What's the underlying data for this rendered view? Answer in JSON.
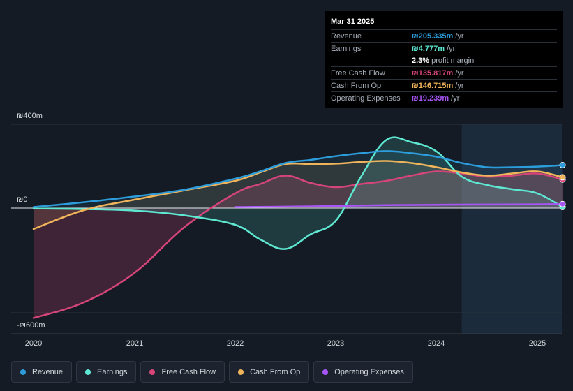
{
  "tooltip": {
    "date": "Mar 31 2025",
    "rows": [
      {
        "label": "Revenue",
        "value": "₪205.335m",
        "unit": "/yr",
        "color": "#2d9cdb"
      },
      {
        "label": "Earnings",
        "value": "₪4.777m",
        "unit": "/yr",
        "color": "#5ee8d2"
      },
      {
        "label": "",
        "value": "2.3%",
        "unit": "profit margin",
        "color": "#ffffff"
      },
      {
        "label": "Free Cash Flow",
        "value": "₪135.817m",
        "unit": "/yr",
        "color": "#d6457a"
      },
      {
        "label": "Cash From Op",
        "value": "₪146.715m",
        "unit": "/yr",
        "color": "#f0b45a"
      },
      {
        "label": "Operating Expenses",
        "value": "₪19.239m",
        "unit": "/yr",
        "color": "#a855f7"
      }
    ]
  },
  "legend": [
    {
      "label": "Revenue",
      "color": "#2d9cdb"
    },
    {
      "label": "Earnings",
      "color": "#5ee8d2"
    },
    {
      "label": "Free Cash Flow",
      "color": "#d6457a"
    },
    {
      "label": "Cash From Op",
      "color": "#f0b45a"
    },
    {
      "label": "Operating Expenses",
      "color": "#a855f7"
    }
  ],
  "chart_data": {
    "type": "area",
    "ylim": [
      -600,
      400
    ],
    "y_tick_labels": [
      "₪400m",
      "₪0",
      "-₪600m"
    ],
    "y_ticks": [
      400,
      0,
      -600
    ],
    "x_tick_labels": [
      "2020",
      "2021",
      "2022",
      "2023",
      "2024",
      "2025"
    ],
    "x_ticks": [
      2020,
      2021,
      2022,
      2023,
      2024,
      2025
    ],
    "xlim": [
      2019.8,
      2025.25
    ],
    "highlight_start": 2024.25,
    "series": [
      {
        "name": "Revenue",
        "color": "#2d9cdb",
        "x": [
          2020,
          2020.5,
          2021,
          2021.5,
          2022,
          2022.25,
          2022.5,
          2022.75,
          2023,
          2023.25,
          2023.5,
          2023.75,
          2024,
          2024.25,
          2024.5,
          2024.75,
          2025,
          2025.25
        ],
        "y": [
          5,
          28,
          55,
          88,
          140,
          175,
          215,
          230,
          248,
          262,
          272,
          262,
          245,
          215,
          195,
          195,
          198,
          205
        ]
      },
      {
        "name": "Earnings",
        "color": "#5ee8d2",
        "x": [
          2020,
          2020.5,
          2021,
          2021.5,
          2022,
          2022.25,
          2022.5,
          2022.75,
          2023,
          2023.25,
          2023.5,
          2023.75,
          2024,
          2024.25,
          2024.5,
          2024.75,
          2025,
          2025.25
        ],
        "y": [
          -2,
          -5,
          -12,
          -35,
          -80,
          -150,
          -195,
          -125,
          -60,
          150,
          325,
          315,
          270,
          150,
          110,
          90,
          70,
          5
        ]
      },
      {
        "name": "Free Cash Flow",
        "color": "#d6457a",
        "x": [
          2020,
          2020.5,
          2021,
          2021.5,
          2022,
          2022.25,
          2022.5,
          2022.75,
          2023,
          2023.25,
          2023.5,
          2023.75,
          2024,
          2024.25,
          2024.5,
          2024.75,
          2025,
          2025.25
        ],
        "y": [
          -525,
          -450,
          -310,
          -90,
          70,
          115,
          155,
          120,
          100,
          115,
          130,
          155,
          175,
          165,
          150,
          155,
          165,
          136
        ]
      },
      {
        "name": "Cash From Op",
        "color": "#f0b45a",
        "x": [
          2020,
          2020.5,
          2021,
          2021.5,
          2022,
          2022.25,
          2022.5,
          2022.75,
          2023,
          2023.25,
          2023.5,
          2023.75,
          2024,
          2024.25,
          2024.5,
          2024.75,
          2025,
          2025.25
        ],
        "y": [
          -100,
          -10,
          40,
          85,
          130,
          170,
          210,
          210,
          212,
          220,
          225,
          215,
          195,
          170,
          155,
          165,
          175,
          147
        ]
      },
      {
        "name": "Operating Expenses",
        "color": "#a855f7",
        "x": [
          2022,
          2022.5,
          2023,
          2023.5,
          2024,
          2024.5,
          2025,
          2025.25
        ],
        "y": [
          5,
          7,
          10,
          14,
          16,
          17,
          18,
          19
        ]
      }
    ]
  }
}
